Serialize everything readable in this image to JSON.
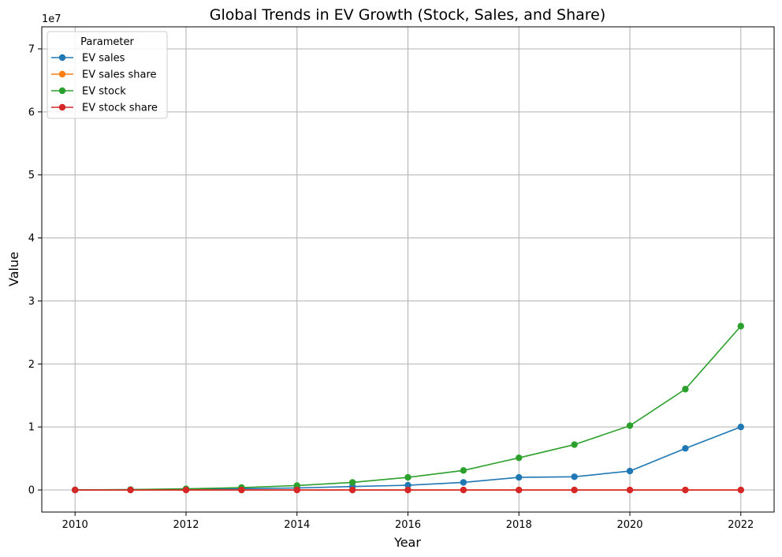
{
  "chart_data": {
    "type": "line",
    "title": "Global Trends in EV Growth (Stock, Sales, and Share)",
    "xlabel": "Year",
    "ylabel": "Value",
    "y_offset_label": "1e7",
    "x": [
      2010,
      2011,
      2012,
      2013,
      2014,
      2015,
      2016,
      2017,
      2018,
      2019,
      2020,
      2021,
      2022
    ],
    "xlim": [
      2009.4,
      2022.6
    ],
    "ylim": [
      -3500000,
      73500000
    ],
    "x_ticks": [
      2010,
      2012,
      2014,
      2016,
      2018,
      2020,
      2022
    ],
    "x_tick_labels": [
      "2010",
      "2012",
      "2014",
      "2016",
      "2018",
      "2020",
      "2022"
    ],
    "y_ticks": [
      0,
      10000000,
      20000000,
      30000000,
      40000000,
      50000000,
      60000000,
      70000000
    ],
    "y_tick_labels": [
      "0",
      "1",
      "2",
      "3",
      "4",
      "5",
      "6",
      "7"
    ],
    "grid": true,
    "legend": {
      "title": "Parameter",
      "placement": "top-left"
    },
    "series": [
      {
        "name": "EV sales",
        "color": "#1f77b4",
        "values": [
          10000,
          50000,
          130000,
          200000,
          320000,
          550000,
          750000,
          1200000,
          2000000,
          2100000,
          3000000,
          6600000,
          10000000
        ]
      },
      {
        "name": "EV sales share",
        "color": "#ff7f0e",
        "values": [
          0,
          0,
          0,
          0,
          0,
          0,
          0,
          0,
          0,
          0,
          0,
          0,
          0
        ]
      },
      {
        "name": "EV stock",
        "color": "#2ca02c",
        "values": [
          17000,
          60000,
          180000,
          380000,
          700000,
          1200000,
          2000000,
          3100000,
          5100000,
          7200000,
          10200000,
          16000000,
          26000000
        ]
      },
      {
        "name": "EV stock share",
        "color": "#d62728",
        "values": [
          0,
          0,
          0,
          0,
          0,
          0,
          0,
          0,
          0,
          0,
          0,
          0,
          0
        ]
      }
    ]
  }
}
